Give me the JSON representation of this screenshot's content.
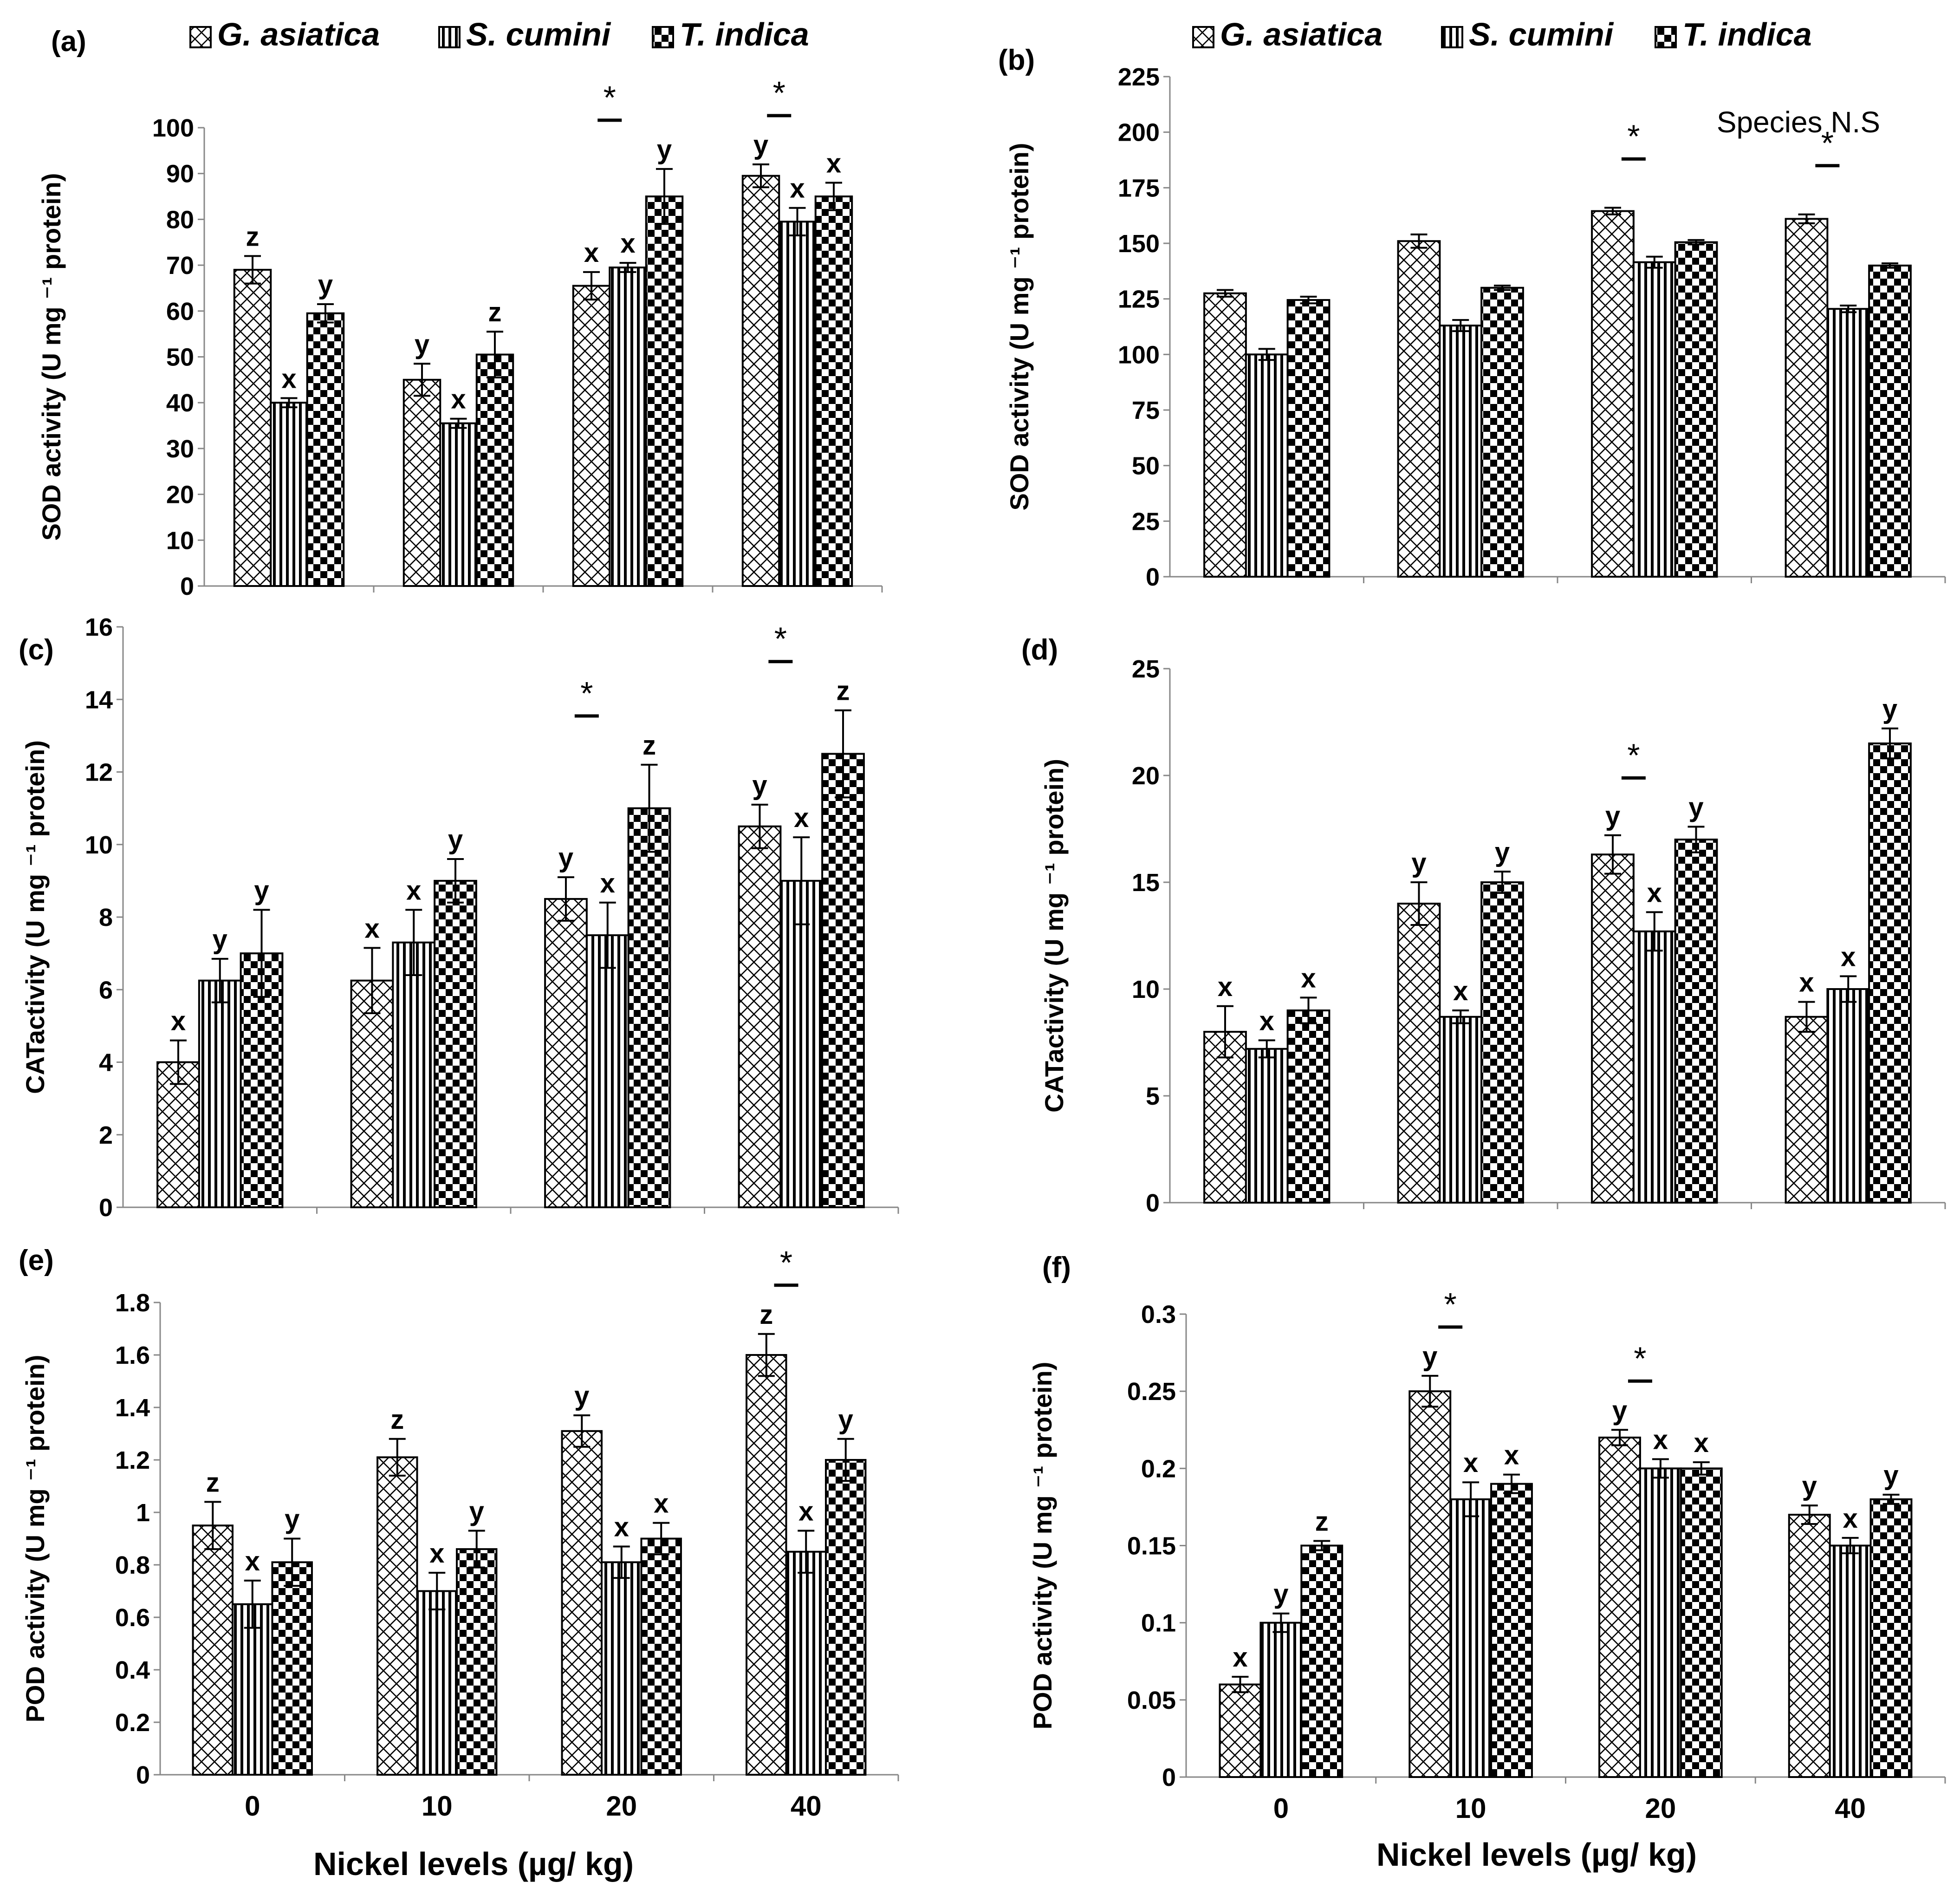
{
  "figure": {
    "x_axis_title": "Nickel levels (µg/ kg)",
    "legend_entries": [
      {
        "name": "G. asiatica",
        "pattern": "crosshatch"
      },
      {
        "name": "S. cumini",
        "pattern": "vertical"
      },
      {
        "name": "T. indica",
        "pattern": "checker"
      }
    ]
  },
  "chart_data": [
    {
      "panel": "(a)",
      "type": "bar",
      "categories": [
        "0",
        "10",
        "20",
        "40"
      ],
      "ylabel": "SOD activity (U mg ⁻¹ protein)",
      "ylim": [
        0,
        100
      ],
      "yticks": [
        0,
        10,
        20,
        30,
        40,
        50,
        60,
        70,
        80,
        90,
        100
      ],
      "series": [
        {
          "name": "G. asiatica",
          "values": [
            69,
            45,
            65.5,
            89.5
          ],
          "errors": [
            3,
            3.5,
            3,
            2.5
          ],
          "letters": [
            "z",
            "y",
            "x",
            "y"
          ]
        },
        {
          "name": "S. cumini",
          "values": [
            40,
            35.5,
            69.5,
            79.5
          ],
          "errors": [
            1,
            1,
            1,
            3
          ],
          "letters": [
            "x",
            "x",
            "x",
            "x"
          ]
        },
        {
          "name": "T. indica",
          "values": [
            59.5,
            50.5,
            85,
            85
          ],
          "errors": [
            2,
            5,
            6,
            3
          ],
          "letters": [
            "y",
            "z",
            "y",
            "x"
          ]
        }
      ],
      "annotations": [
        {
          "category": "20",
          "text": "*"
        },
        {
          "category": "40",
          "text": "*"
        }
      ],
      "legend_position": "top",
      "show_legend": true,
      "show_xlabels": false
    },
    {
      "panel": "(b)",
      "type": "bar",
      "categories": [
        "0",
        "10",
        "20",
        "40"
      ],
      "ylabel": "SOD activity (U mg ⁻¹ protein)",
      "ylim": [
        0,
        225
      ],
      "yticks": [
        0,
        25,
        50,
        75,
        100,
        125,
        150,
        175,
        200,
        225
      ],
      "series": [
        {
          "name": "G. asiatica",
          "values": [
            127.5,
            151,
            164.5,
            161
          ],
          "errors": [
            1.5,
            3,
            1.5,
            2
          ],
          "letters": [
            "",
            "",
            "",
            ""
          ]
        },
        {
          "name": "S. cumini",
          "values": [
            100,
            113,
            141.5,
            120.5
          ],
          "errors": [
            2.5,
            2.5,
            2.5,
            1.5
          ],
          "letters": [
            "",
            "",
            "",
            ""
          ]
        },
        {
          "name": "T. indica",
          "values": [
            124.5,
            130,
            150.5,
            140
          ],
          "errors": [
            1.5,
            1,
            1,
            1
          ],
          "letters": [
            "",
            "",
            "",
            ""
          ]
        }
      ],
      "annotations": [
        {
          "category": "20",
          "text": "*"
        },
        {
          "category": "40",
          "text": "*"
        }
      ],
      "note": "Species N.S",
      "legend_position": "top",
      "show_legend": true,
      "show_xlabels": false
    },
    {
      "panel": "(c)",
      "type": "bar",
      "categories": [
        "0",
        "10",
        "20",
        "40"
      ],
      "ylabel": "CATactivity (U mg ⁻¹ protein)",
      "ylim": [
        0,
        16
      ],
      "yticks": [
        0,
        2,
        4,
        6,
        8,
        10,
        12,
        14,
        16
      ],
      "series": [
        {
          "name": "G. asiatica",
          "values": [
            4,
            6.25,
            8.5,
            10.5
          ],
          "errors": [
            0.6,
            0.9,
            0.6,
            0.6
          ],
          "letters": [
            "x",
            "x",
            "y",
            "y"
          ]
        },
        {
          "name": "S. cumini",
          "values": [
            6.25,
            7.3,
            7.5,
            9
          ],
          "errors": [
            0.6,
            0.9,
            0.9,
            1.2
          ],
          "letters": [
            "y",
            "x",
            "x",
            "x"
          ]
        },
        {
          "name": "T. indica",
          "values": [
            7,
            9,
            11,
            12.5
          ],
          "errors": [
            1.2,
            0.6,
            1.2,
            1.2
          ],
          "letters": [
            "y",
            "y",
            "z",
            "z"
          ]
        }
      ],
      "annotations": [
        {
          "category": "20",
          "text": "*"
        },
        {
          "category": "40",
          "text": "*"
        }
      ],
      "legend_position": "none",
      "show_legend": false,
      "show_xlabels": false
    },
    {
      "panel": "(d)",
      "type": "bar",
      "categories": [
        "0",
        "10",
        "20",
        "40"
      ],
      "ylabel": "CATactivity (U mg ⁻¹ protein)",
      "ylim": [
        0,
        25
      ],
      "yticks": [
        0,
        5,
        10,
        15,
        20,
        25
      ],
      "series": [
        {
          "name": "G. asiatica",
          "values": [
            8,
            14,
            16.3,
            8.7
          ],
          "errors": [
            1.2,
            1,
            0.9,
            0.7
          ],
          "letters": [
            "x",
            "y",
            "y",
            "x"
          ]
        },
        {
          "name": "S. cumini",
          "values": [
            7.2,
            8.7,
            12.7,
            10
          ],
          "errors": [
            0.4,
            0.3,
            0.9,
            0.6
          ],
          "letters": [
            "x",
            "x",
            "x",
            "x"
          ]
        },
        {
          "name": "T. indica",
          "values": [
            9,
            15,
            17,
            21.5
          ],
          "errors": [
            0.6,
            0.5,
            0.6,
            0.7
          ],
          "letters": [
            "x",
            "y",
            "y",
            "y"
          ]
        }
      ],
      "annotations": [
        {
          "category": "20",
          "text": "*"
        }
      ],
      "legend_position": "none",
      "show_legend": false,
      "show_xlabels": false
    },
    {
      "panel": "(e)",
      "type": "bar",
      "categories": [
        "0",
        "10",
        "20",
        "40"
      ],
      "ylabel": "POD activity (U mg ⁻¹ protein)",
      "ylim": [
        0,
        1.8
      ],
      "yticks": [
        0,
        0.2,
        0.4,
        0.6,
        0.8,
        1,
        1.2,
        1.4,
        1.6,
        1.8
      ],
      "series": [
        {
          "name": "G. asiatica",
          "values": [
            0.95,
            1.21,
            1.31,
            1.6
          ],
          "errors": [
            0.09,
            0.07,
            0.06,
            0.08
          ],
          "letters": [
            "z",
            "z",
            "y",
            "z"
          ]
        },
        {
          "name": "S. cumini",
          "values": [
            0.65,
            0.7,
            0.81,
            0.85
          ],
          "errors": [
            0.09,
            0.07,
            0.06,
            0.08
          ],
          "letters": [
            "x",
            "x",
            "x",
            "x"
          ]
        },
        {
          "name": "T. indica",
          "values": [
            0.81,
            0.86,
            0.9,
            1.2
          ],
          "errors": [
            0.09,
            0.07,
            0.06,
            0.08
          ],
          "letters": [
            "y",
            "y",
            "x",
            "y"
          ]
        }
      ],
      "annotations": [
        {
          "category": "40",
          "text": "*"
        }
      ],
      "legend_position": "none",
      "show_legend": false,
      "show_xlabels": true
    },
    {
      "panel": "(f)",
      "type": "bar",
      "categories": [
        "0",
        "10",
        "20",
        "40"
      ],
      "ylabel": "POD activity (U mg ⁻¹ protein)",
      "ylim": [
        0,
        0.3
      ],
      "yticks": [
        0,
        0.05,
        0.1,
        0.15,
        0.2,
        0.25,
        0.3
      ],
      "series": [
        {
          "name": "G. asiatica",
          "values": [
            0.06,
            0.25,
            0.22,
            0.17
          ],
          "errors": [
            0.005,
            0.01,
            0.005,
            0.006
          ],
          "letters": [
            "x",
            "y",
            "y",
            "y"
          ]
        },
        {
          "name": "S. cumini",
          "values": [
            0.1,
            0.18,
            0.2,
            0.15
          ],
          "errors": [
            0.006,
            0.011,
            0.006,
            0.005
          ],
          "letters": [
            "y",
            "x",
            "x",
            "x"
          ]
        },
        {
          "name": "T. indica",
          "values": [
            0.15,
            0.19,
            0.2,
            0.18
          ],
          "errors": [
            0.003,
            0.006,
            0.004,
            0.003
          ],
          "letters": [
            "z",
            "x",
            "x",
            "y"
          ]
        }
      ],
      "annotations": [
        {
          "category": "10",
          "text": "*"
        },
        {
          "category": "20",
          "text": "*"
        }
      ],
      "legend_position": "none",
      "show_legend": false,
      "show_xlabels": true
    }
  ]
}
